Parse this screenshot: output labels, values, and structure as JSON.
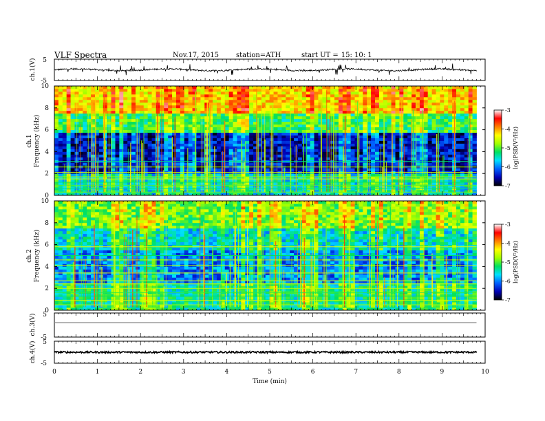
{
  "header": {
    "title": "VLF  Spectra",
    "date": "Nov.17, 2015",
    "station_label": "station=",
    "station_value": "ATH",
    "start_label": "start  UT  =",
    "start_value": "15: 10: 1"
  },
  "chart_data": [
    {
      "type": "line",
      "name": "ch.1 waveform",
      "ylabel": "ch.1(V)",
      "ylim": [
        -5,
        5
      ],
      "yticks": [
        "5",
        "-5"
      ],
      "x_range_min": [
        0,
        9.8
      ],
      "baseline": 0,
      "noise_amplitude": 0.6,
      "spikes": "frequent positive and negative spikes up to about ±2.5 V",
      "color": "#000000"
    },
    {
      "type": "heatmap",
      "name": "ch.1 spectrogram",
      "ylabel": "ch.1",
      "ylabel2": "Frequency (kHz)",
      "ylim": [
        0,
        10
      ],
      "yticks": [
        "0",
        "2",
        "4",
        "6",
        "8",
        "10"
      ],
      "x_range_min": [
        0,
        9.8
      ],
      "colorbar": {
        "label": "log(PSD(V²/Hz)",
        "range": [
          -7,
          -3
        ],
        "ticks": [
          "-3",
          "-4",
          "-5",
          "-6",
          "-7"
        ],
        "colors": [
          "#000000",
          "#0000b4",
          "#0060ff",
          "#00e0ff",
          "#00e060",
          "#a0ff00",
          "#ffff00",
          "#ff8000",
          "#ff0000",
          "#ffffff"
        ]
      },
      "bands": [
        {
          "f_min": 0,
          "f_max": 2,
          "level": -5.6
        },
        {
          "f_min": 2,
          "f_max": 5.7,
          "level": -6.5
        },
        {
          "f_min": 5.7,
          "f_max": 7.5,
          "level": -5.2
        },
        {
          "f_min": 7.5,
          "f_max": 10,
          "level": -4.3
        }
      ],
      "tone_lines_khz": [
        0.3,
        0.6,
        0.9,
        1.2,
        1.5,
        1.7,
        2.1,
        2.6,
        3.1
      ],
      "sferics": "dense broadband vertical impulses throughout"
    },
    {
      "type": "heatmap",
      "name": "ch.2 spectrogram",
      "ylabel": "ch.2",
      "ylabel2": "Frequency (kHz)",
      "ylim": [
        0,
        10
      ],
      "yticks": [
        "0",
        "2",
        "4",
        "6",
        "8",
        "10"
      ],
      "x_range_min": [
        0,
        9.8
      ],
      "colorbar": {
        "label": "log(PSD(V²/Hz)",
        "range": [
          -7,
          -3
        ],
        "ticks": [
          "-3",
          "-4",
          "-5",
          "-6",
          "-7"
        ],
        "colors": [
          "#000000",
          "#0000b4",
          "#0060ff",
          "#00e0ff",
          "#00e060",
          "#a0ff00",
          "#ffff00",
          "#ff8000",
          "#ff0000",
          "#ffffff"
        ]
      },
      "bands": [
        {
          "f_min": 0,
          "f_max": 2.5,
          "level": -5.4
        },
        {
          "f_min": 2.5,
          "f_max": 5.5,
          "level": -6.0
        },
        {
          "f_min": 5.5,
          "f_max": 7.5,
          "level": -5.6
        },
        {
          "f_min": 7.5,
          "f_max": 10,
          "level": -4.9
        }
      ],
      "tone_lines_khz": [
        0.5,
        0.9,
        1.3,
        1.6,
        2.0,
        2.4,
        2.7,
        3.4,
        4.1,
        4.6,
        5.0,
        5.8
      ],
      "sferics": "dense broadband vertical impulses throughout"
    },
    {
      "type": "line",
      "name": "ch.3 waveform",
      "ylabel": "ch.3(V)",
      "ylim": [
        -5,
        5
      ],
      "yticks": [
        "5",
        "-5"
      ],
      "x_range_min": [
        0,
        9.8
      ],
      "baseline": 1.0,
      "color": "#888888"
    },
    {
      "type": "line",
      "name": "ch.4 waveform",
      "ylabel": "ch.4(V)",
      "ylim": [
        -5,
        5
      ],
      "yticks": [
        "5",
        "-5"
      ],
      "x_range_min": [
        0,
        9.8
      ],
      "baseline": 0,
      "noise_amplitude": 0.4,
      "color": "#000000"
    }
  ],
  "x_axis": {
    "label": "Time  (min)",
    "lim": [
      0,
      10
    ],
    "ticks": [
      "0",
      "1",
      "2",
      "3",
      "4",
      "5",
      "6",
      "7",
      "8",
      "9",
      "10"
    ]
  }
}
